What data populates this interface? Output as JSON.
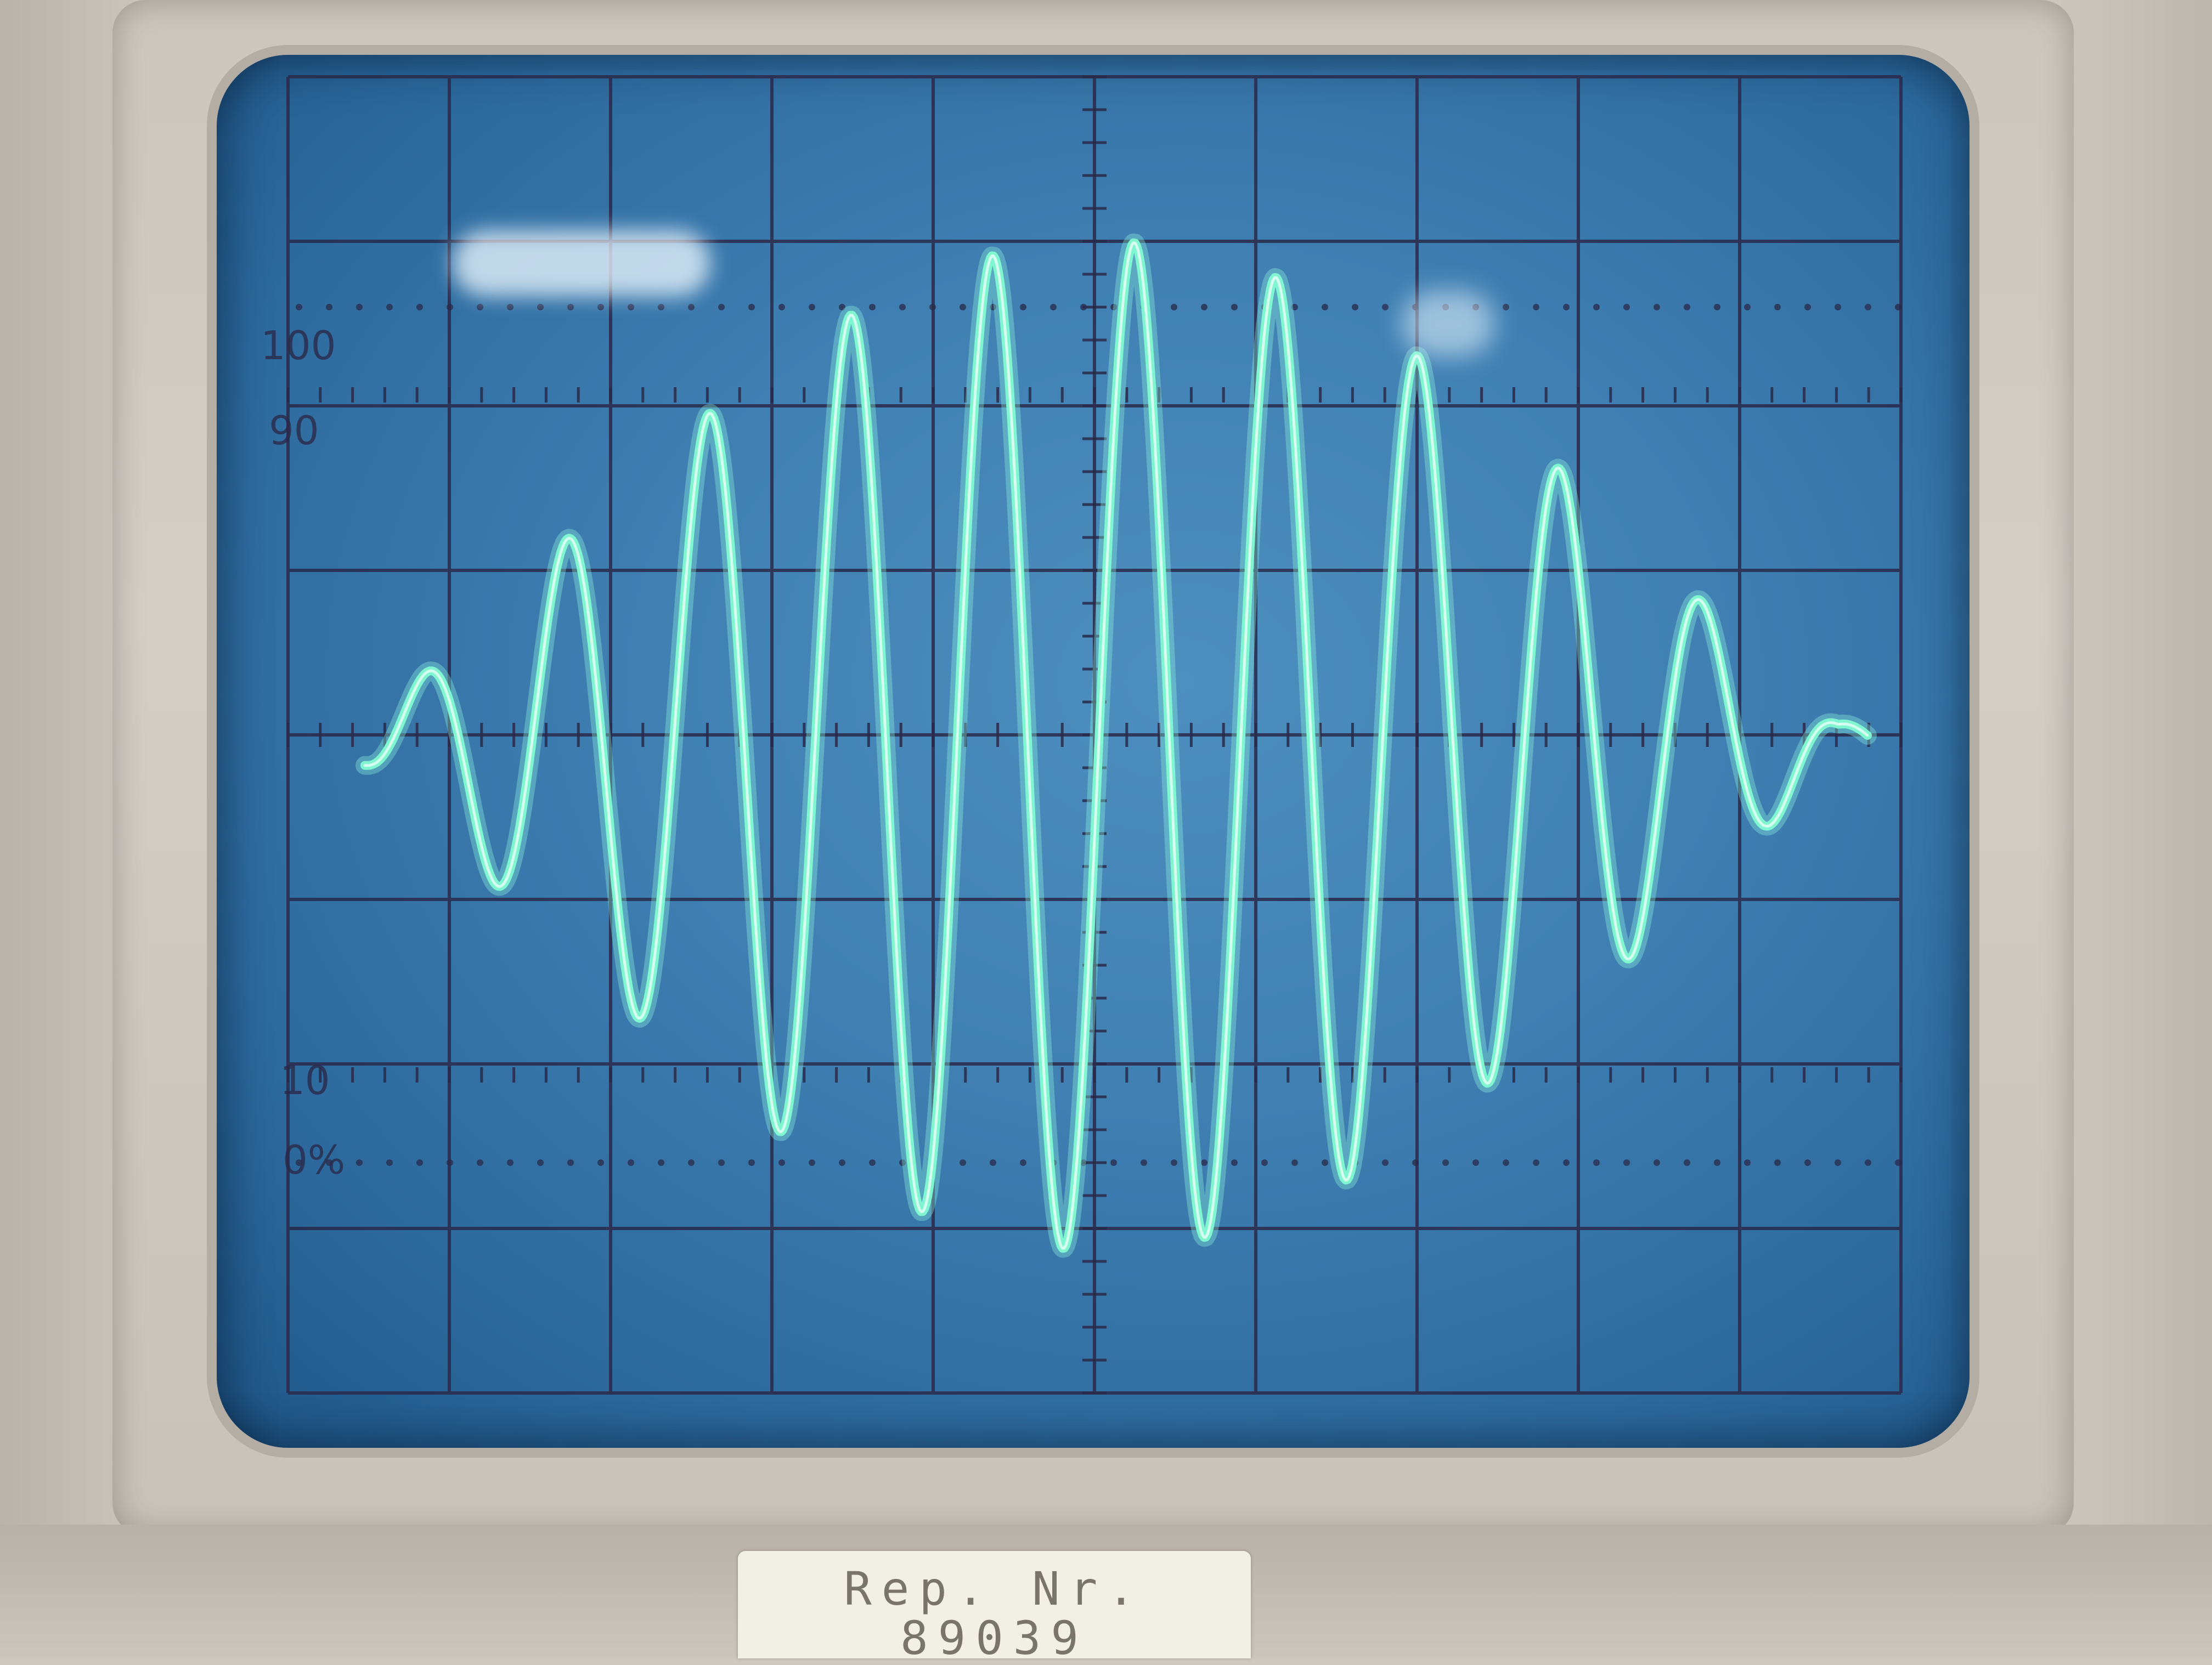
{
  "scope": {
    "screen_color": "#3f7fb2",
    "grid_color": "#2a2a4a",
    "trace_color": "#7ff5d0",
    "graticule_labels": {
      "label_100": "100",
      "label_90": "90",
      "label_10": "10",
      "label_0": "0%"
    },
    "trace": {
      "description_type": "amplitude-modulated sine burst",
      "peak_count": 9
    }
  },
  "label_plate": {
    "line1": "Rep. Nr.",
    "line2": "89039"
  }
}
